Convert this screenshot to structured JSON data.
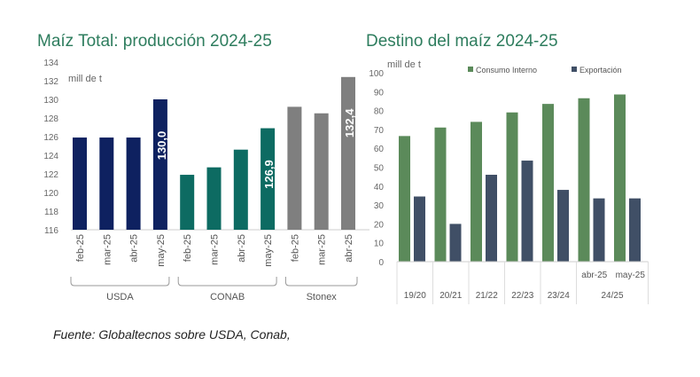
{
  "chart_data": [
    {
      "type": "bar",
      "title": "Maíz Total: producción 2024-25",
      "ylabel": "mill de t",
      "ylim": [
        116,
        134
      ],
      "yticks": [
        116,
        118,
        120,
        122,
        124,
        126,
        128,
        130,
        132,
        134
      ],
      "groups": [
        {
          "name": "USDA",
          "color": "#0e2160",
          "categories": [
            "feb-25",
            "mar-25",
            "abr-25",
            "may-25"
          ],
          "values": [
            125.9,
            125.9,
            125.9,
            130.0
          ],
          "label_last": "130,0"
        },
        {
          "name": "CONAB",
          "color": "#0d6b62",
          "categories": [
            "feb-25",
            "mar-25",
            "abr-25",
            "may-25"
          ],
          "values": [
            121.9,
            122.7,
            124.6,
            126.9
          ],
          "label_last": "126,9"
        },
        {
          "name": "Stonex",
          "color": "#7f7f7f",
          "categories": [
            "feb-25",
            "mar-25",
            "abr-25"
          ],
          "values": [
            129.2,
            128.5,
            132.4
          ],
          "label_last": "132,4"
        }
      ],
      "grid": false
    },
    {
      "type": "bar",
      "title": "Destino del maíz 2024-25",
      "ylabel": "mill de t",
      "ylim": [
        0,
        100
      ],
      "yticks": [
        0,
        10,
        20,
        30,
        40,
        50,
        60,
        70,
        80,
        90,
        100
      ],
      "categories": [
        "19/20",
        "20/21",
        "21/22",
        "22/23",
        "23/24",
        "abr-25",
        "may-25"
      ],
      "category_groups": [
        {
          "label": "19/20",
          "span": 1
        },
        {
          "label": "20/21",
          "span": 1
        },
        {
          "label": "21/22",
          "span": 1
        },
        {
          "label": "22/23",
          "span": 1
        },
        {
          "label": "23/24",
          "span": 1
        },
        {
          "label": "24/25",
          "span": 2
        }
      ],
      "sub_labels": [
        "",
        "",
        "",
        "",
        "",
        "abr-25",
        "may-25"
      ],
      "series": [
        {
          "name": "Consumo Interno",
          "color": "#5b8a5a",
          "values": [
            66.5,
            71,
            74,
            79,
            83.5,
            86.5,
            88.5
          ]
        },
        {
          "name": "Exportación",
          "color": "#404f66",
          "values": [
            34.5,
            20,
            46,
            53.5,
            38,
            33.5,
            33.5
          ]
        }
      ],
      "legend": "top",
      "grid": false
    }
  ],
  "footnote": "Fuente: Globaltecnos sobre USDA, Conab,"
}
